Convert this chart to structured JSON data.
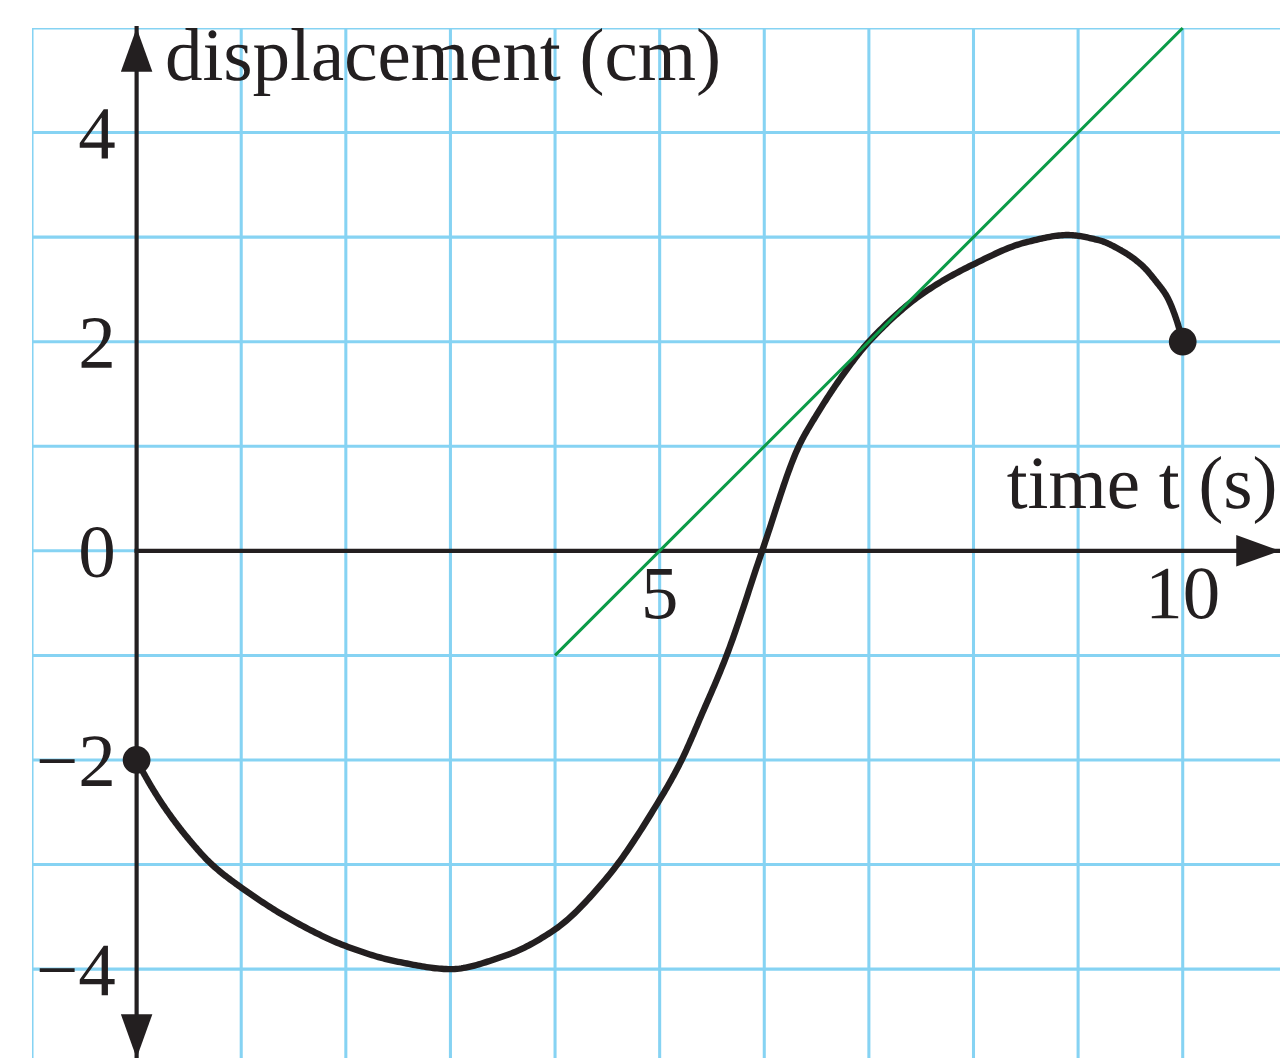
{
  "chart_data": {
    "type": "line",
    "xlabel": "time t (s)",
    "ylabel": "displacement (cm)",
    "xlim": [
      -1,
      10.93
    ],
    "ylim": [
      -4.85,
      5
    ],
    "xticks": [
      {
        "value": -1,
        "label": null
      },
      {
        "value": 0,
        "label": null
      },
      {
        "value": 1,
        "label": null
      },
      {
        "value": 2,
        "label": null
      },
      {
        "value": 3,
        "label": null
      },
      {
        "value": 4,
        "label": null
      },
      5,
      {
        "value": 6,
        "label": null
      },
      {
        "value": 7,
        "label": null
      },
      {
        "value": 8,
        "label": null
      },
      {
        "value": 9,
        "label": null
      },
      10
    ],
    "yticks": [
      {
        "value": -4,
        "label": "−4"
      },
      {
        "value": -3,
        "label": null
      },
      {
        "value": -2,
        "label": "−2"
      },
      {
        "value": -1,
        "label": null
      },
      0,
      {
        "value": 1,
        "label": null
      },
      2,
      {
        "value": 3,
        "label": null
      },
      4,
      {
        "value": 5,
        "label": null
      }
    ],
    "grid": true,
    "series": [
      {
        "color": "#231f20",
        "x": [
          0,
          0.15,
          0.3,
          0.5,
          0.72,
          1,
          1.5,
          2,
          2.5,
          3,
          3.5,
          4,
          4.5,
          5,
          5.21,
          5.4,
          5.64,
          5.98,
          6.33,
          6.5,
          6.75,
          7,
          7.5,
          8,
          8.5,
          8.9,
          9.2,
          9.4,
          9.6,
          9.75,
          9.85,
          9.93,
          10
        ],
        "values": [
          -2,
          -2.27,
          -2.5,
          -2.76,
          -3,
          -3.22,
          -3.54,
          -3.78,
          -3.93,
          -4,
          -3.88,
          -3.62,
          -3.12,
          -2.38,
          -2,
          -1.57,
          -1,
          0,
          1,
          1.3,
          1.68,
          2,
          2.45,
          2.74,
          2.95,
          3.02,
          2.97,
          2.88,
          2.74,
          2.57,
          2.43,
          2.24,
          2
        ]
      },
      {
        "color": "#0b9b48",
        "x": [
          4,
          10
        ],
        "values": [
          -1,
          5
        ]
      },
      {
        "type": "scatter",
        "color": "#231f20",
        "marker": "circle",
        "x": [
          0,
          10
        ],
        "values": [
          -2,
          2
        ]
      }
    ]
  }
}
